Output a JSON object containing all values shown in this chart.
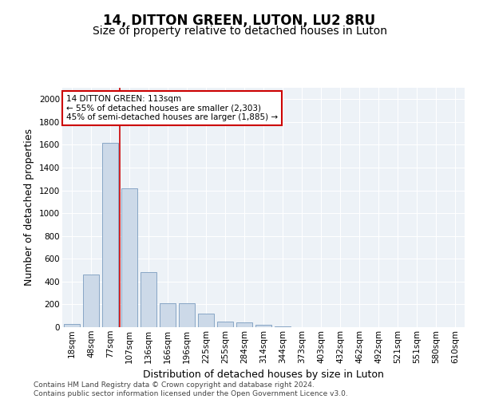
{
  "title": "14, DITTON GREEN, LUTON, LU2 8RU",
  "subtitle": "Size of property relative to detached houses in Luton",
  "xlabel": "Distribution of detached houses by size in Luton",
  "ylabel": "Number of detached properties",
  "categories": [
    "18sqm",
    "48sqm",
    "77sqm",
    "107sqm",
    "136sqm",
    "166sqm",
    "196sqm",
    "225sqm",
    "255sqm",
    "284sqm",
    "314sqm",
    "344sqm",
    "373sqm",
    "403sqm",
    "432sqm",
    "462sqm",
    "492sqm",
    "521sqm",
    "551sqm",
    "580sqm",
    "610sqm"
  ],
  "values": [
    30,
    460,
    1620,
    1220,
    480,
    210,
    210,
    120,
    50,
    40,
    20,
    10,
    0,
    0,
    0,
    0,
    0,
    0,
    0,
    0,
    0
  ],
  "bar_color": "#ccd9e8",
  "bar_edge_color": "#7a9bbf",
  "vline_color": "#cc0000",
  "annotation_text": "14 DITTON GREEN: 113sqm\n← 55% of detached houses are smaller (2,303)\n45% of semi-detached houses are larger (1,885) →",
  "annotation_box_color": "#ffffff",
  "annotation_box_edge": "#cc0000",
  "ylim": [
    0,
    2100
  ],
  "yticks": [
    0,
    200,
    400,
    600,
    800,
    1000,
    1200,
    1400,
    1600,
    1800,
    2000
  ],
  "footnote": "Contains HM Land Registry data © Crown copyright and database right 2024.\nContains public sector information licensed under the Open Government Licence v3.0.",
  "plot_bg_color": "#edf2f7",
  "title_fontsize": 12,
  "subtitle_fontsize": 10,
  "label_fontsize": 9,
  "tick_fontsize": 7.5,
  "footnote_fontsize": 6.5,
  "vline_bar_index": 2.5
}
